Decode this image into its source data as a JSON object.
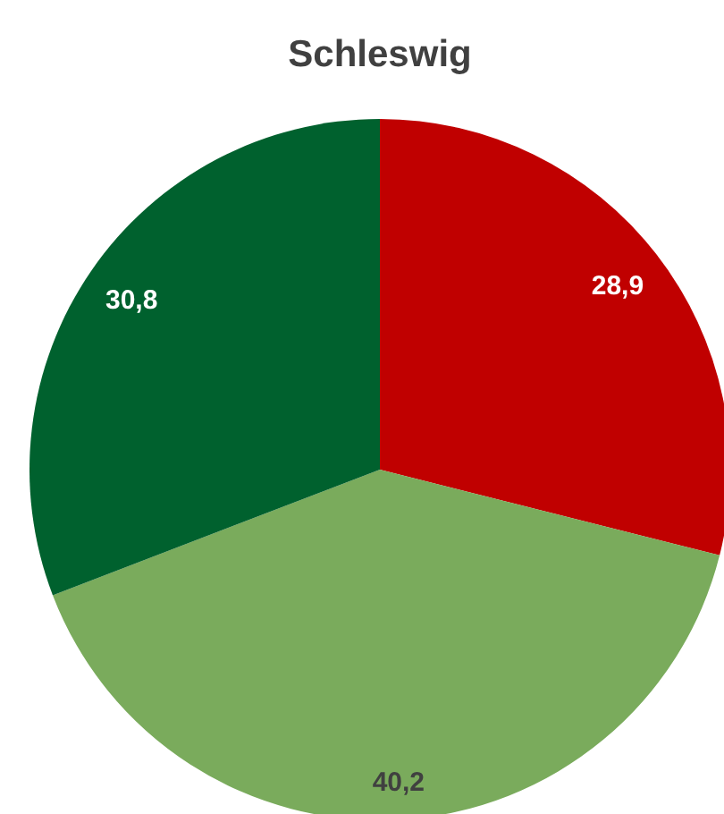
{
  "chart_data": {
    "type": "pie",
    "title": "Schleswig",
    "categories": [
      null,
      null,
      null
    ],
    "values": [
      28.9,
      40.2,
      30.8
    ],
    "colors": [
      "#c00000",
      "#7aab5c",
      "#00612e"
    ],
    "value_labels": [
      "28,9",
      "40,2",
      "30,8"
    ]
  }
}
